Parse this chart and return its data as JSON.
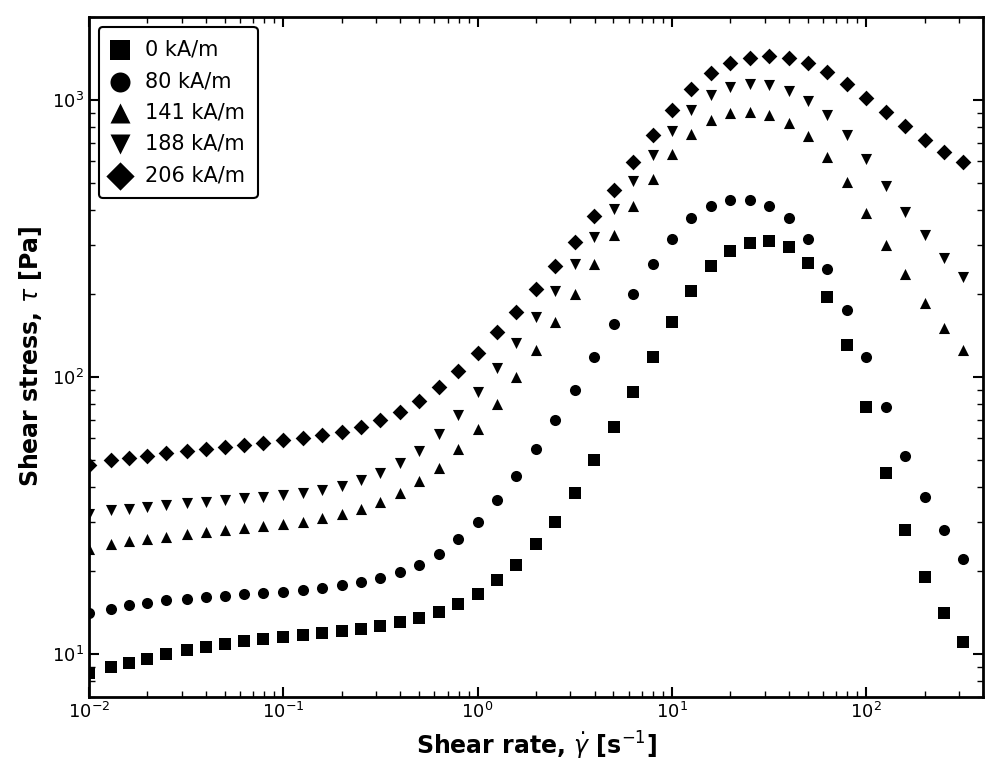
{
  "title": "",
  "xlabel": "Shear rate, $\\dot{\\gamma}$ [s$^{-1}$]",
  "ylabel": "Shear stress, $\\tau$ [Pa]",
  "xlim": [
    0.01,
    400
  ],
  "ylim": [
    7,
    2000
  ],
  "background_color": "#ffffff",
  "series": [
    {
      "label": "0 kA/m",
      "marker": "s",
      "x": [
        0.01,
        0.013,
        0.016,
        0.02,
        0.025,
        0.032,
        0.04,
        0.05,
        0.063,
        0.079,
        0.1,
        0.126,
        0.158,
        0.2,
        0.251,
        0.316,
        0.398,
        0.501,
        0.631,
        0.794,
        1.0,
        1.259,
        1.585,
        1.995,
        2.512,
        3.162,
        3.981,
        5.012,
        6.31,
        7.943,
        10.0,
        12.59,
        15.85,
        19.95,
        25.12,
        31.62,
        39.81,
        50.12,
        63.1,
        79.43,
        100.0,
        125.9,
        158.5,
        199.5,
        251.2,
        316.2
      ],
      "y": [
        8.5,
        9.0,
        9.3,
        9.6,
        10.0,
        10.3,
        10.6,
        10.9,
        11.1,
        11.3,
        11.5,
        11.7,
        11.9,
        12.1,
        12.3,
        12.6,
        13.0,
        13.5,
        14.2,
        15.2,
        16.5,
        18.5,
        21.0,
        25.0,
        30.0,
        38.0,
        50.0,
        66.0,
        88.0,
        118.0,
        158.0,
        205.0,
        252.0,
        285.0,
        305.0,
        310.0,
        295.0,
        258.0,
        195.0,
        130.0,
        78.0,
        45.0,
        28.0,
        19.0,
        14.0,
        11.0
      ]
    },
    {
      "label": "80 kA/m",
      "marker": "o",
      "x": [
        0.01,
        0.013,
        0.016,
        0.02,
        0.025,
        0.032,
        0.04,
        0.05,
        0.063,
        0.079,
        0.1,
        0.126,
        0.158,
        0.2,
        0.251,
        0.316,
        0.398,
        0.501,
        0.631,
        0.794,
        1.0,
        1.259,
        1.585,
        1.995,
        2.512,
        3.162,
        3.981,
        5.012,
        6.31,
        7.943,
        10.0,
        12.59,
        15.85,
        19.95,
        25.12,
        31.62,
        39.81,
        50.12,
        63.1,
        79.43,
        100.0,
        125.9,
        158.5,
        199.5,
        251.2,
        316.2
      ],
      "y": [
        14.0,
        14.5,
        15.0,
        15.3,
        15.6,
        15.8,
        16.0,
        16.2,
        16.4,
        16.6,
        16.8,
        17.0,
        17.3,
        17.7,
        18.2,
        18.8,
        19.8,
        21.0,
        23.0,
        26.0,
        30.0,
        36.0,
        44.0,
        55.0,
        70.0,
        90.0,
        118.0,
        155.0,
        200.0,
        255.0,
        315.0,
        375.0,
        415.0,
        435.0,
        435.0,
        415.0,
        375.0,
        315.0,
        245.0,
        175.0,
        118.0,
        78.0,
        52.0,
        37.0,
        28.0,
        22.0
      ]
    },
    {
      "label": "141 kA/m",
      "marker": "^",
      "x": [
        0.01,
        0.013,
        0.016,
        0.02,
        0.025,
        0.032,
        0.04,
        0.05,
        0.063,
        0.079,
        0.1,
        0.126,
        0.158,
        0.2,
        0.251,
        0.316,
        0.398,
        0.501,
        0.631,
        0.794,
        1.0,
        1.259,
        1.585,
        1.995,
        2.512,
        3.162,
        3.981,
        5.012,
        6.31,
        7.943,
        10.0,
        12.59,
        15.85,
        19.95,
        25.12,
        31.62,
        39.81,
        50.12,
        63.1,
        79.43,
        100.0,
        125.9,
        158.5,
        199.5,
        251.2,
        316.2
      ],
      "y": [
        24.0,
        25.0,
        25.5,
        26.0,
        26.5,
        27.0,
        27.5,
        28.0,
        28.5,
        29.0,
        29.5,
        30.0,
        31.0,
        32.0,
        33.5,
        35.5,
        38.0,
        42.0,
        47.0,
        55.0,
        65.0,
        80.0,
        100.0,
        125.0,
        158.0,
        200.0,
        255.0,
        325.0,
        415.0,
        520.0,
        640.0,
        755.0,
        845.0,
        895.0,
        905.0,
        880.0,
        825.0,
        740.0,
        625.0,
        505.0,
        390.0,
        300.0,
        235.0,
        185.0,
        150.0,
        125.0
      ]
    },
    {
      "label": "188 kA/m",
      "marker": "v",
      "x": [
        0.01,
        0.013,
        0.016,
        0.02,
        0.025,
        0.032,
        0.04,
        0.05,
        0.063,
        0.079,
        0.1,
        0.126,
        0.158,
        0.2,
        0.251,
        0.316,
        0.398,
        0.501,
        0.631,
        0.794,
        1.0,
        1.259,
        1.585,
        1.995,
        2.512,
        3.162,
        3.981,
        5.012,
        6.31,
        7.943,
        10.0,
        12.59,
        15.85,
        19.95,
        25.12,
        31.62,
        39.81,
        50.12,
        63.1,
        79.43,
        100.0,
        125.9,
        158.5,
        199.5,
        251.2,
        316.2
      ],
      "y": [
        32.0,
        33.0,
        33.5,
        34.0,
        34.5,
        35.0,
        35.5,
        36.0,
        36.5,
        37.0,
        37.5,
        38.0,
        39.0,
        40.5,
        42.5,
        45.0,
        49.0,
        54.0,
        62.0,
        73.0,
        88.0,
        108.0,
        133.0,
        165.0,
        205.0,
        255.0,
        320.0,
        405.0,
        510.0,
        635.0,
        775.0,
        920.0,
        1040.0,
        1115.0,
        1145.0,
        1130.0,
        1080.0,
        995.0,
        880.0,
        745.0,
        610.0,
        490.0,
        395.0,
        325.0,
        270.0,
        230.0
      ]
    },
    {
      "label": "206 kA/m",
      "marker": "D",
      "x": [
        0.01,
        0.013,
        0.016,
        0.02,
        0.025,
        0.032,
        0.04,
        0.05,
        0.063,
        0.079,
        0.1,
        0.126,
        0.158,
        0.2,
        0.251,
        0.316,
        0.398,
        0.501,
        0.631,
        0.794,
        1.0,
        1.259,
        1.585,
        1.995,
        2.512,
        3.162,
        3.981,
        5.012,
        6.31,
        7.943,
        10.0,
        12.59,
        15.85,
        19.95,
        25.12,
        31.62,
        39.81,
        50.12,
        63.1,
        79.43,
        100.0,
        125.9,
        158.5,
        199.5,
        251.2,
        316.2
      ],
      "y": [
        48.0,
        50.0,
        51.0,
        52.0,
        53.0,
        54.0,
        55.0,
        56.0,
        57.0,
        58.0,
        59.0,
        60.0,
        61.5,
        63.5,
        66.0,
        70.0,
        75.0,
        82.0,
        92.0,
        105.0,
        122.0,
        145.0,
        172.0,
        207.0,
        252.0,
        308.0,
        380.0,
        475.0,
        595.0,
        745.0,
        920.0,
        1100.0,
        1250.0,
        1360.0,
        1420.0,
        1440.0,
        1420.0,
        1360.0,
        1265.0,
        1145.0,
        1020.0,
        905.0,
        805.0,
        720.0,
        650.0,
        595.0
      ]
    }
  ],
  "marker_size": 8,
  "color": "#000000"
}
